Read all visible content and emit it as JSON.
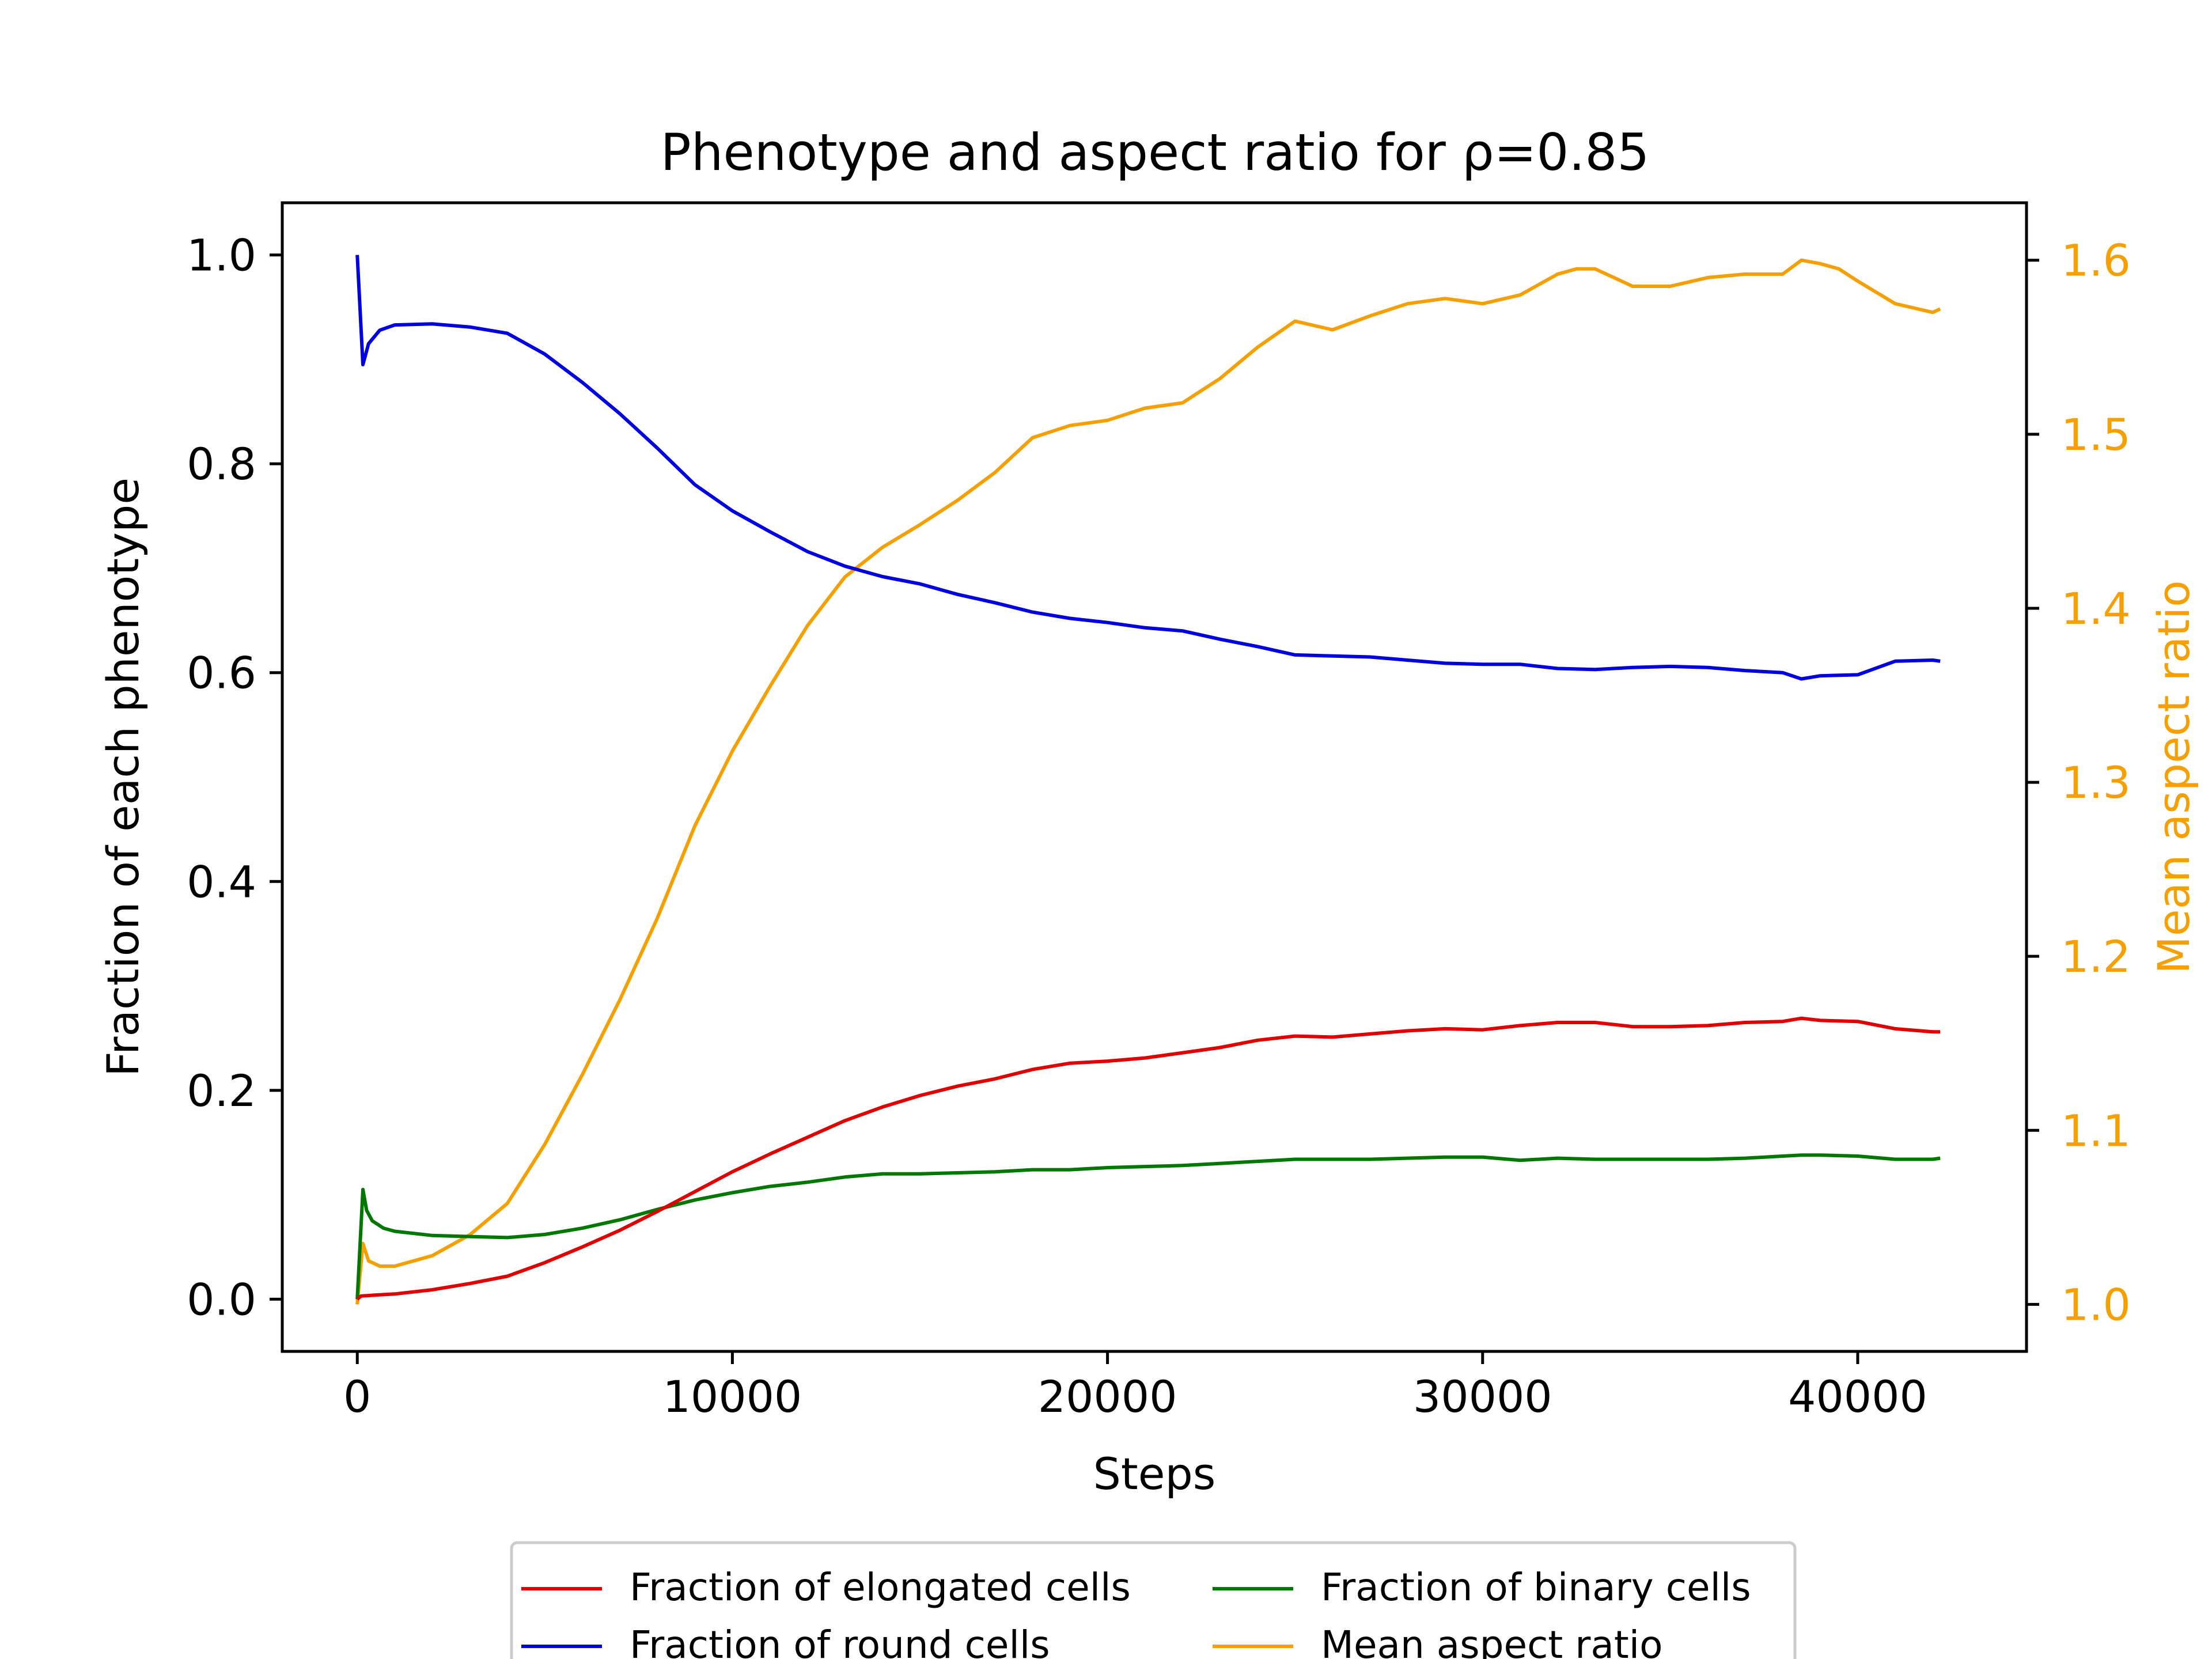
{
  "chart_data": {
    "type": "line",
    "title": "Phenotype and aspect ratio for ρ=0.85",
    "xlabel": "Steps",
    "ylabel": "Fraction of each phenotype",
    "y2label": "Mean aspect ratio",
    "xlim": [
      -2000,
      44500
    ],
    "ylim": [
      -0.05,
      1.05
    ],
    "y2lim": [
      0.973,
      1.633
    ],
    "xticks": [
      0,
      10000,
      20000,
      30000,
      40000
    ],
    "yticks": [
      0.0,
      0.2,
      0.4,
      0.6,
      0.8,
      1.0
    ],
    "y2ticks": [
      1.0,
      1.1,
      1.2,
      1.3,
      1.4,
      1.5,
      1.6
    ],
    "xtick_labels": [
      "0",
      "10000",
      "20000",
      "30000",
      "40000"
    ],
    "ytick_labels": [
      "0.0",
      "0.2",
      "0.4",
      "0.6",
      "0.8",
      "1.0"
    ],
    "y2tick_labels": [
      "1.0",
      "1.1",
      "1.2",
      "1.3",
      "1.4",
      "1.5",
      "1.6"
    ],
    "grid": false,
    "legend_position": "below plot, 2 columns",
    "legend_order": [
      "Fraction of elongated cells",
      "Fraction of round cells",
      "Fraction of binary cells",
      "Mean aspect ratio"
    ],
    "series": [
      {
        "name": "Fraction of elongated cells",
        "axis": "left",
        "color": "#e00000",
        "x": [
          0,
          100,
          500,
          1000,
          2000,
          3000,
          4000,
          5000,
          6000,
          7000,
          8000,
          9000,
          10000,
          11000,
          12000,
          13000,
          14000,
          15000,
          16000,
          17000,
          18000,
          19000,
          20000,
          21000,
          22000,
          23000,
          24000,
          25000,
          26000,
          27000,
          28000,
          29000,
          30000,
          31000,
          32000,
          33000,
          34000,
          35000,
          36000,
          37000,
          38000,
          38500,
          39000,
          40000,
          41000,
          42000,
          42200
        ],
        "y": [
          0.0,
          0.003,
          0.004,
          0.005,
          0.009,
          0.015,
          0.022,
          0.035,
          0.05,
          0.066,
          0.084,
          0.103,
          0.122,
          0.139,
          0.155,
          0.171,
          0.184,
          0.195,
          0.204,
          0.211,
          0.22,
          0.226,
          0.228,
          0.231,
          0.236,
          0.241,
          0.248,
          0.252,
          0.251,
          0.254,
          0.257,
          0.259,
          0.258,
          0.262,
          0.265,
          0.265,
          0.261,
          0.261,
          0.262,
          0.265,
          0.266,
          0.269,
          0.267,
          0.266,
          0.259,
          0.256,
          0.256
        ]
      },
      {
        "name": "Fraction of round cells",
        "axis": "left",
        "color": "#0000e0",
        "x": [
          0,
          150,
          300,
          600,
          1000,
          2000,
          3000,
          4000,
          5000,
          6000,
          7000,
          8000,
          9000,
          10000,
          11000,
          12000,
          13000,
          14000,
          15000,
          16000,
          17000,
          18000,
          19000,
          20000,
          21000,
          22000,
          23000,
          24000,
          25000,
          26000,
          27000,
          28000,
          29000,
          30000,
          31000,
          32000,
          33000,
          34000,
          35000,
          36000,
          37000,
          38000,
          38500,
          39000,
          40000,
          41000,
          42000,
          42200
        ],
        "y": [
          1.0,
          0.895,
          0.915,
          0.928,
          0.933,
          0.934,
          0.931,
          0.925,
          0.905,
          0.878,
          0.848,
          0.815,
          0.78,
          0.755,
          0.735,
          0.716,
          0.702,
          0.692,
          0.685,
          0.675,
          0.667,
          0.658,
          0.652,
          0.648,
          0.643,
          0.64,
          0.632,
          0.625,
          0.617,
          0.616,
          0.615,
          0.612,
          0.609,
          0.608,
          0.608,
          0.604,
          0.603,
          0.605,
          0.606,
          0.605,
          0.602,
          0.6,
          0.594,
          0.597,
          0.598,
          0.611,
          0.612,
          0.611
        ]
      },
      {
        "name": "Fraction of binary cells",
        "axis": "left",
        "color": "#007800",
        "x": [
          0,
          150,
          250,
          400,
          700,
          1000,
          2000,
          3000,
          4000,
          5000,
          6000,
          7000,
          8000,
          9000,
          10000,
          11000,
          12000,
          13000,
          14000,
          15000,
          16000,
          17000,
          18000,
          19000,
          20000,
          21000,
          22000,
          23000,
          24000,
          25000,
          26000,
          27000,
          28000,
          29000,
          30000,
          31000,
          32000,
          33000,
          34000,
          35000,
          36000,
          37000,
          38000,
          38500,
          39000,
          40000,
          41000,
          42000,
          42200
        ],
        "y": [
          0.0,
          0.105,
          0.085,
          0.075,
          0.068,
          0.065,
          0.061,
          0.06,
          0.059,
          0.062,
          0.068,
          0.076,
          0.086,
          0.095,
          0.102,
          0.108,
          0.112,
          0.117,
          0.12,
          0.12,
          0.121,
          0.122,
          0.124,
          0.124,
          0.126,
          0.127,
          0.128,
          0.13,
          0.132,
          0.134,
          0.134,
          0.134,
          0.135,
          0.136,
          0.136,
          0.133,
          0.135,
          0.134,
          0.134,
          0.134,
          0.134,
          0.135,
          0.137,
          0.138,
          0.138,
          0.137,
          0.134,
          0.134,
          0.135
        ]
      },
      {
        "name": "Mean aspect ratio",
        "axis": "right",
        "color": "#f5a000",
        "x": [
          0,
          150,
          300,
          600,
          1000,
          2000,
          3000,
          4000,
          5000,
          6000,
          7000,
          8000,
          9000,
          10000,
          11000,
          12000,
          13000,
          14000,
          15000,
          16000,
          17000,
          18000,
          19000,
          20000,
          21000,
          22000,
          23000,
          24000,
          25000,
          26000,
          27000,
          28000,
          29000,
          30000,
          31000,
          32000,
          32500,
          33000,
          34000,
          35000,
          36000,
          37000,
          38000,
          38500,
          39000,
          39500,
          40000,
          41000,
          42000,
          42200
        ],
        "y": [
          1.0,
          1.035,
          1.025,
          1.022,
          1.022,
          1.028,
          1.04,
          1.058,
          1.092,
          1.132,
          1.175,
          1.222,
          1.275,
          1.318,
          1.355,
          1.39,
          1.418,
          1.435,
          1.448,
          1.462,
          1.478,
          1.498,
          1.505,
          1.508,
          1.515,
          1.518,
          1.532,
          1.55,
          1.565,
          1.56,
          1.568,
          1.575,
          1.578,
          1.575,
          1.58,
          1.592,
          1.595,
          1.595,
          1.585,
          1.585,
          1.59,
          1.592,
          1.592,
          1.6,
          1.598,
          1.595,
          1.588,
          1.575,
          1.57,
          1.572
        ]
      }
    ]
  }
}
